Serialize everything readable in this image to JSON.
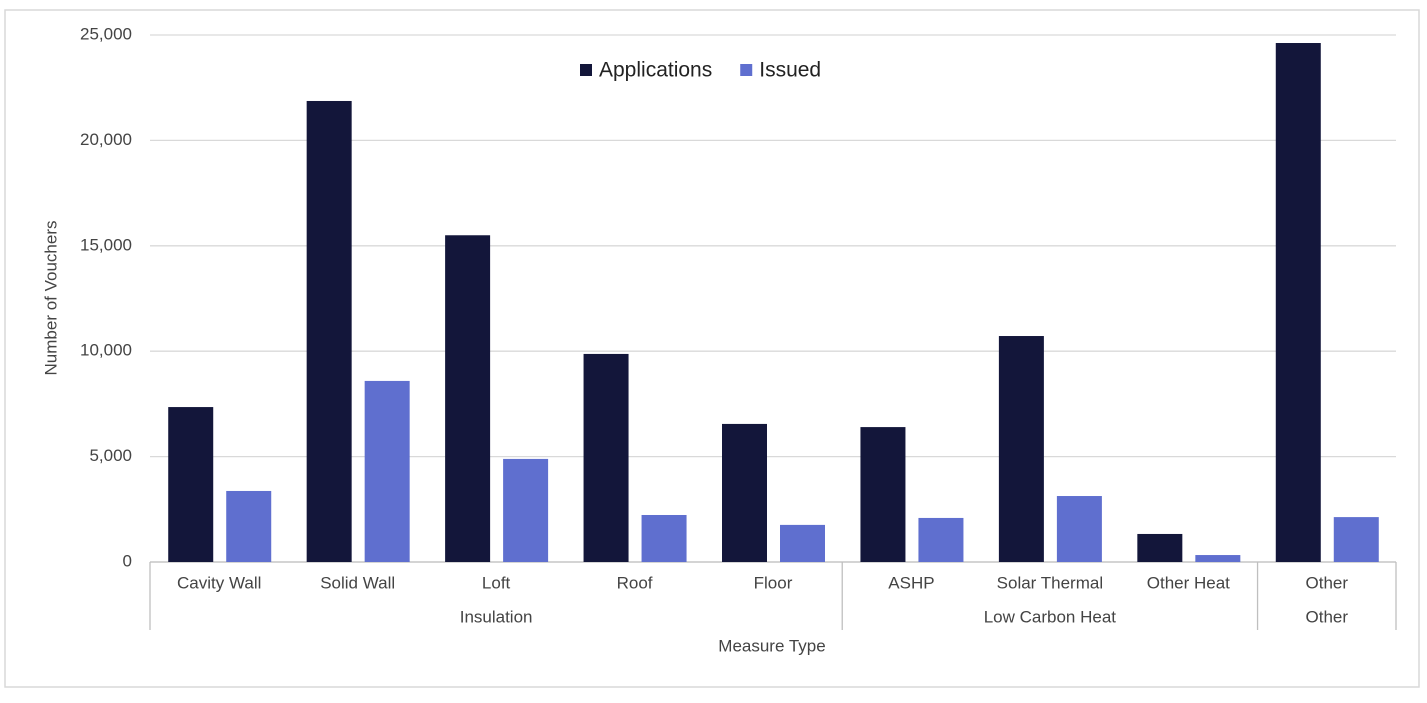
{
  "chart_data": {
    "type": "bar",
    "groups": [
      {
        "name": "Insulation",
        "categories": [
          "Cavity Wall",
          "Solid Wall",
          "Loft",
          "Roof",
          "Floor"
        ]
      },
      {
        "name": "Low Carbon Heat",
        "categories": [
          "ASHP",
          "Solar Thermal",
          "Other Heat"
        ]
      },
      {
        "name": "Other",
        "categories": [
          "Other"
        ]
      }
    ],
    "series": [
      {
        "name": "Applications",
        "color": "#13163a",
        "values": [
          7350,
          21870,
          15500,
          9870,
          6550,
          6400,
          10720,
          1330,
          24620
        ]
      },
      {
        "name": "Issued",
        "color": "#5f6fcf",
        "values": [
          3370,
          8590,
          4890,
          2230,
          1760,
          2090,
          3130,
          330,
          2130
        ]
      }
    ],
    "y_label": "Number of Vouchers",
    "x_label": "Measure Type",
    "ylim": [
      0,
      25000
    ],
    "yticks": [
      0,
      {
        "value": 5000,
        "label": "5,000"
      },
      {
        "value": 10000,
        "label": "10,000"
      },
      {
        "value": 15000,
        "label": "15,000"
      },
      {
        "value": 20000,
        "label": "20,000"
      },
      {
        "value": 25000,
        "label": "25,000"
      }
    ],
    "grid": true,
    "legend": "top"
  }
}
